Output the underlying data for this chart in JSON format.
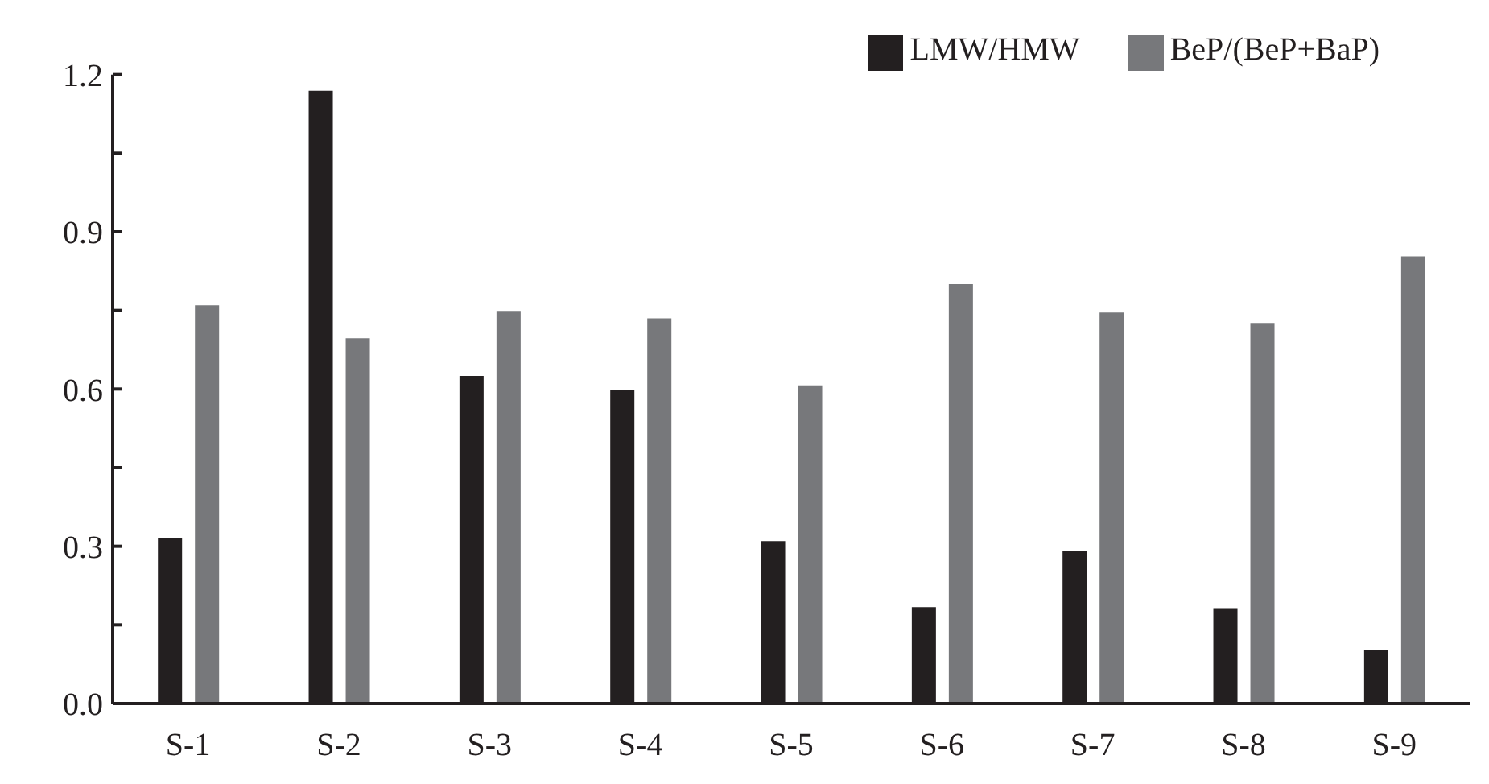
{
  "chart_data": {
    "type": "bar",
    "categories": [
      "S-1",
      "S-2",
      "S-3",
      "S-4",
      "S-5",
      "S-6",
      "S-7",
      "S-8",
      "S-9"
    ],
    "series": [
      {
        "name": "LMW/HMW",
        "color": "#231f20",
        "values": [
          0.315,
          1.169,
          0.625,
          0.599,
          0.31,
          0.184,
          0.291,
          0.182,
          0.102
        ]
      },
      {
        "name": "BeP/(BeP+BaP)",
        "color": "#77787b",
        "values": [
          0.76,
          0.697,
          0.749,
          0.735,
          0.607,
          0.8,
          0.746,
          0.726,
          0.853
        ]
      }
    ],
    "ylim": [
      0,
      1.2
    ],
    "yticks": [
      {
        "value": 0,
        "label": "0.0"
      },
      {
        "value": 0.15,
        "label": null
      },
      0.3,
      {
        "value": 0.45,
        "label": null
      },
      0.6,
      {
        "value": 0.75,
        "label": null
      },
      0.9,
      {
        "value": 1.05,
        "label": null
      },
      1.2
    ],
    "grid": false,
    "legend": "top right"
  }
}
